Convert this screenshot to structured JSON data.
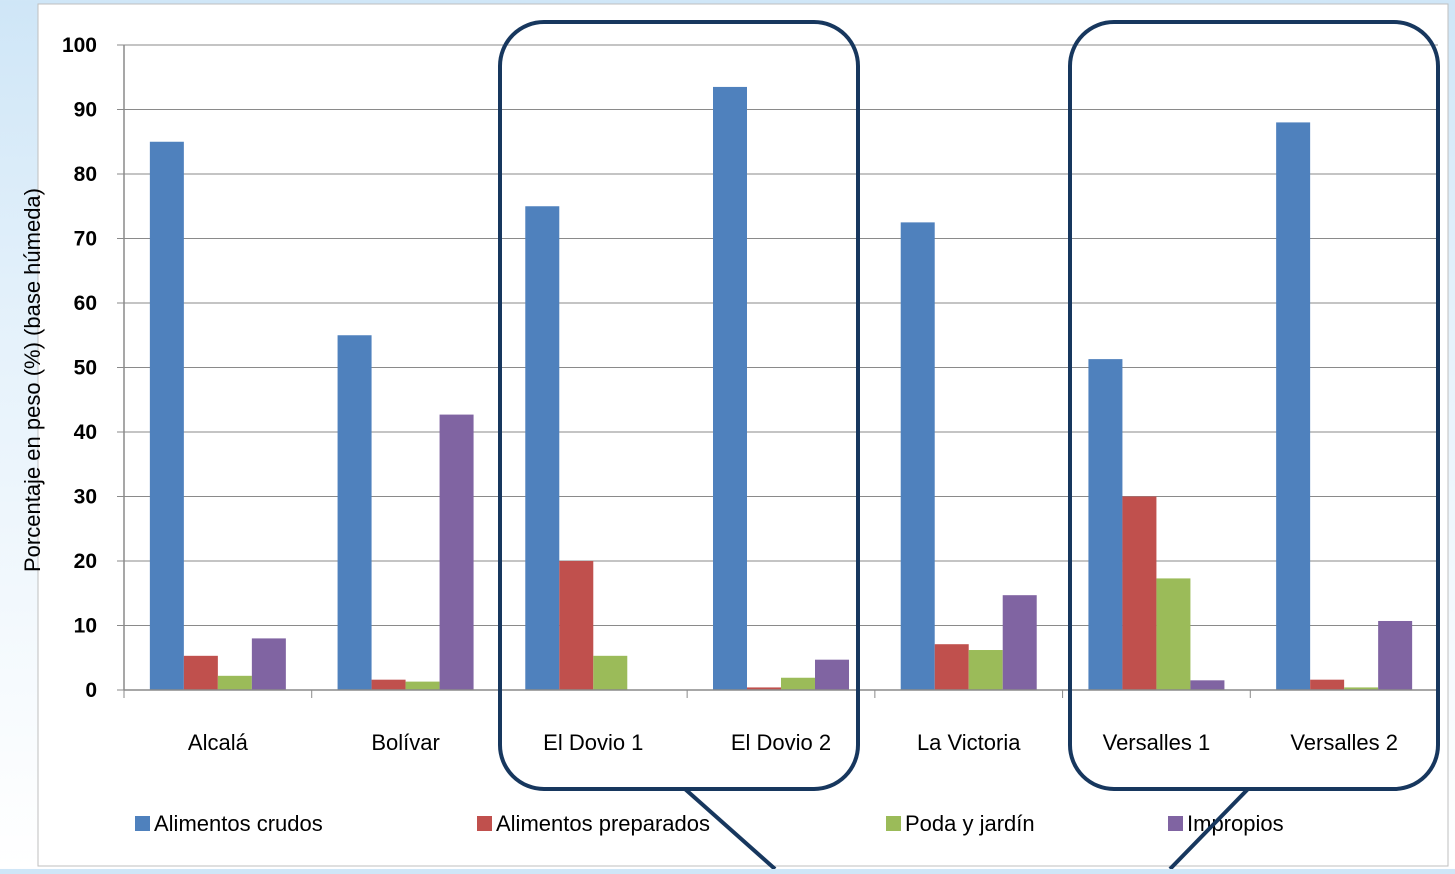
{
  "chart_data": {
    "type": "bar",
    "title": "",
    "xlabel": "",
    "ylabel": "Porcentaje en peso (%) (base húmeda)",
    "ylim": [
      0,
      100
    ],
    "yticks": [
      0,
      10,
      20,
      30,
      40,
      50,
      60,
      70,
      80,
      90,
      100
    ],
    "grid": true,
    "legend_position": "bottom",
    "categories": [
      "Alcalá",
      "Bolívar",
      "El Dovio 1",
      "El Dovio 2",
      "La Victoria",
      "Versalles 1",
      "Versalles  2"
    ],
    "series": [
      {
        "name": "Alimentos crudos",
        "color": "#4f81bd",
        "values": [
          85,
          55,
          75,
          93.5,
          72.5,
          51.3,
          88
        ]
      },
      {
        "name": "Alimentos preparados",
        "color": "#c0504d",
        "values": [
          5.3,
          1.6,
          20,
          0.4,
          7.1,
          30,
          1.6
        ]
      },
      {
        "name": "Poda y jardín",
        "color": "#9bbb59",
        "values": [
          2.2,
          1.3,
          5.3,
          1.9,
          6.2,
          17.3,
          0.4
        ]
      },
      {
        "name": "Impropios",
        "color": "#8064a2",
        "values": [
          8,
          42.7,
          0,
          4.7,
          14.7,
          1.5,
          10.7
        ]
      }
    ],
    "highlighted_groups": [
      "El Dovio 1 - El Dovio 2",
      "Versalles 1 - Versalles  2"
    ]
  }
}
